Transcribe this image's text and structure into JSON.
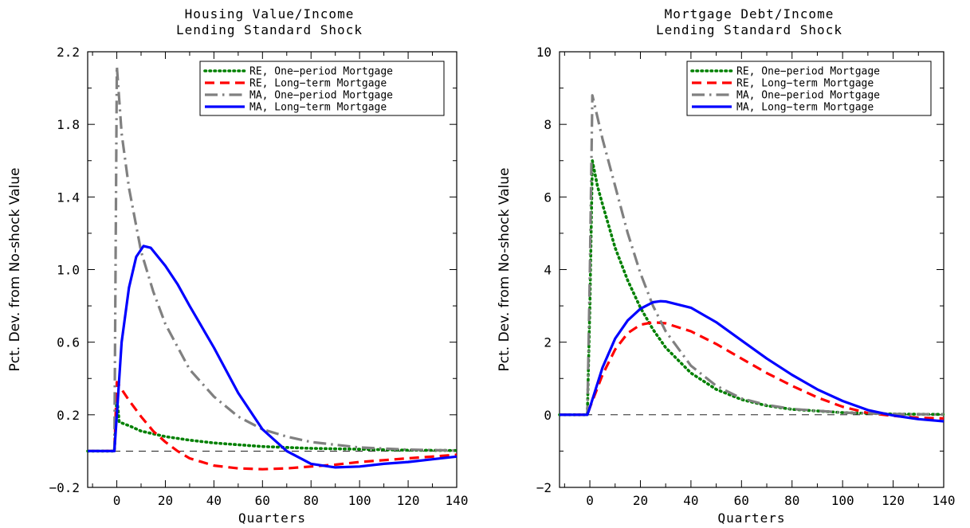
{
  "chart_data": [
    {
      "type": "line",
      "title_lines": [
        "Housing Value/Income",
        "Lending Standard Shock"
      ],
      "xlabel": "Quarters",
      "ylabel": "Pct. Dev. from No-shock Value",
      "xlim": [
        -12,
        140
      ],
      "ylim": [
        -0.2,
        2.2
      ],
      "xticks": [
        0,
        20,
        40,
        60,
        80,
        100,
        120,
        140
      ],
      "yticks": [
        -0.2,
        0.2,
        0.6,
        1.0,
        1.4,
        1.8,
        2.2
      ],
      "ytick_labels": [
        "−0.2",
        "0.2",
        "0.6",
        "1.0",
        "1.4",
        "1.8",
        "2.2"
      ],
      "baseline": 0,
      "legend_position": "top-right",
      "series": [
        {
          "name": "RE, One−period Mortgage",
          "style": "dotted",
          "color": "#008000",
          "x": [
            -12,
            -1,
            0,
            1,
            5,
            10,
            20,
            30,
            40,
            60,
            80,
            100,
            120,
            140
          ],
          "y": [
            0,
            0,
            0.3,
            0.16,
            0.14,
            0.11,
            0.08,
            0.06,
            0.045,
            0.025,
            0.015,
            0.01,
            0.005,
            0.003
          ]
        },
        {
          "name": "RE, Long−term Mortgage",
          "style": "dashed",
          "color": "#ff0000",
          "x": [
            -12,
            -1,
            0,
            2,
            5,
            10,
            15,
            20,
            25,
            30,
            40,
            50,
            60,
            70,
            80,
            90,
            100,
            110,
            120,
            130,
            140
          ],
          "y": [
            0,
            0,
            0.38,
            0.34,
            0.28,
            0.19,
            0.11,
            0.05,
            0.0,
            -0.04,
            -0.08,
            -0.095,
            -0.1,
            -0.095,
            -0.085,
            -0.075,
            -0.06,
            -0.05,
            -0.04,
            -0.03,
            -0.02
          ]
        },
        {
          "name": "MA, One−period Mortgage",
          "style": "dashdot",
          "color": "#808080",
          "x": [
            -12,
            -1,
            0,
            2,
            5,
            10,
            15,
            20,
            30,
            40,
            50,
            60,
            70,
            80,
            100,
            120,
            140
          ],
          "y": [
            0,
            0,
            2.12,
            1.75,
            1.45,
            1.1,
            0.88,
            0.7,
            0.45,
            0.3,
            0.19,
            0.12,
            0.08,
            0.05,
            0.02,
            0.008,
            0.003
          ]
        },
        {
          "name": "MA, Long−term Mortgage",
          "style": "solid",
          "color": "#0000ff",
          "x": [
            -12,
            -1,
            0,
            2,
            5,
            8,
            11,
            14,
            20,
            25,
            30,
            40,
            50,
            60,
            70,
            80,
            90,
            100,
            110,
            120,
            130,
            140
          ],
          "y": [
            0,
            0,
            0.2,
            0.6,
            0.9,
            1.07,
            1.13,
            1.12,
            1.02,
            0.92,
            0.8,
            0.57,
            0.32,
            0.12,
            0.0,
            -0.07,
            -0.09,
            -0.085,
            -0.07,
            -0.06,
            -0.045,
            -0.03
          ]
        }
      ]
    },
    {
      "type": "line",
      "title_lines": [
        "Mortgage Debt/Income",
        "Lending Standard Shock"
      ],
      "xlabel": "Quarters",
      "ylabel": "Pct. Dev. from No-shock Value",
      "xlim": [
        -12,
        140
      ],
      "ylim": [
        -2,
        10
      ],
      "xticks": [
        0,
        20,
        40,
        60,
        80,
        100,
        120,
        140
      ],
      "yticks": [
        -2,
        0,
        2,
        4,
        6,
        8,
        10
      ],
      "ytick_labels": [
        "−2",
        "0",
        "2",
        "4",
        "6",
        "8",
        "10"
      ],
      "baseline": 0,
      "legend_position": "top-right",
      "series": [
        {
          "name": "RE, One−period Mortgage",
          "style": "dotted",
          "color": "#008000",
          "x": [
            -12,
            -1,
            0,
            1,
            3,
            5,
            10,
            15,
            20,
            25,
            30,
            40,
            50,
            60,
            70,
            80,
            100,
            120,
            140
          ],
          "y": [
            0,
            0,
            3.0,
            7.0,
            6.3,
            5.8,
            4.6,
            3.7,
            2.95,
            2.35,
            1.85,
            1.15,
            0.7,
            0.42,
            0.25,
            0.15,
            0.06,
            0.02,
            0.01
          ]
        },
        {
          "name": "RE, Long−term Mortgage",
          "style": "dashed",
          "color": "#ff0000",
          "x": [
            -12,
            -1,
            0,
            5,
            10,
            15,
            20,
            25,
            30,
            40,
            50,
            60,
            70,
            80,
            90,
            100,
            110,
            120,
            130,
            140
          ],
          "y": [
            0,
            0,
            0.2,
            1.1,
            1.8,
            2.25,
            2.48,
            2.55,
            2.52,
            2.3,
            1.95,
            1.55,
            1.15,
            0.8,
            0.48,
            0.22,
            0.05,
            -0.03,
            -0.08,
            -0.1
          ]
        },
        {
          "name": "MA, One−period Mortgage",
          "style": "dashdot",
          "color": "#808080",
          "x": [
            -12,
            -1,
            0,
            1,
            3,
            5,
            10,
            15,
            20,
            25,
            30,
            40,
            50,
            60,
            70,
            80,
            100,
            120,
            140
          ],
          "y": [
            0,
            0,
            4.0,
            8.8,
            8.2,
            7.6,
            6.3,
            5.0,
            3.9,
            3.0,
            2.3,
            1.35,
            0.8,
            0.45,
            0.27,
            0.16,
            0.06,
            0.02,
            0.01
          ]
        },
        {
          "name": "MA, Long−term Mortgage",
          "style": "solid",
          "color": "#0000ff",
          "x": [
            -12,
            -1,
            0,
            5,
            10,
            15,
            20,
            25,
            28,
            30,
            40,
            50,
            60,
            70,
            80,
            90,
            100,
            110,
            120,
            130,
            140
          ],
          "y": [
            0,
            0,
            0.2,
            1.3,
            2.1,
            2.6,
            2.92,
            3.1,
            3.13,
            3.12,
            2.95,
            2.55,
            2.05,
            1.55,
            1.1,
            0.7,
            0.38,
            0.13,
            -0.02,
            -0.12,
            -0.18
          ]
        }
      ]
    }
  ]
}
